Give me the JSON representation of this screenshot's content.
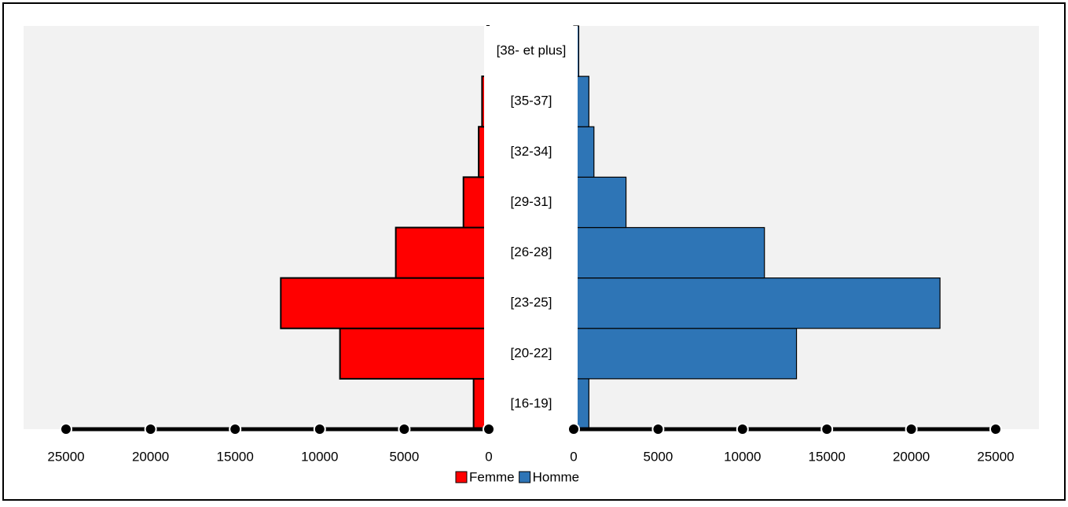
{
  "chart_data": {
    "type": "pyramid",
    "categories": [
      "[16-19]",
      "[20-22]",
      "[23-25]",
      "[26-28]",
      "[29-31]",
      "[32-34]",
      "[35-37]",
      "[38- et plus]"
    ],
    "series": [
      {
        "name": "Femme",
        "color": "#ff0000",
        "values": [
          900,
          8800,
          12300,
          5500,
          1500,
          600,
          400,
          100
        ]
      },
      {
        "name": "Homme",
        "color": "#2e75b6",
        "values": [
          900,
          13200,
          21700,
          11300,
          3100,
          1200,
          900,
          300
        ]
      }
    ],
    "xlim": [
      0,
      25000
    ],
    "xticks": [
      0,
      5000,
      10000,
      15000,
      20000,
      25000
    ],
    "legend": "bottom"
  }
}
